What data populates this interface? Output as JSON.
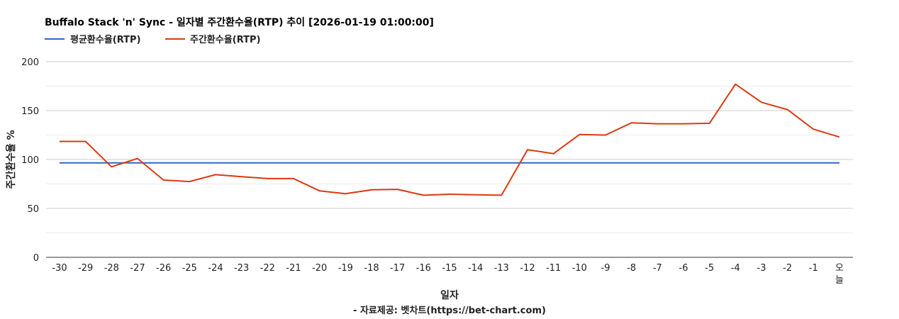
{
  "chart_data": {
    "type": "line",
    "title": "Buffalo Stack 'n' Sync - 일자별 주간환수율(RTP) 추이 [2026-01-19 01:00:00]",
    "xlabel": "일자",
    "ylabel": "주간환수율 %",
    "source": "- 자료제공: 벳차트(https://bet-chart.com)",
    "categories": [
      "-30",
      "-29",
      "-28",
      "-27",
      "-26",
      "-25",
      "-24",
      "-23",
      "-22",
      "-21",
      "-20",
      "-19",
      "-18",
      "-17",
      "-16",
      "-15",
      "-14",
      "-13",
      "-12",
      "-11",
      "-10",
      "-9",
      "-8",
      "-7",
      "-6",
      "-5",
      "-4",
      "-3",
      "-2",
      "-1",
      "오늘"
    ],
    "series": [
      {
        "name": "평균환수율(RTP)",
        "color": "#3366cc",
        "values": [
          96.5,
          96.5,
          96.5,
          96.5,
          96.5,
          96.5,
          96.5,
          96.5,
          96.5,
          96.5,
          96.5,
          96.5,
          96.5,
          96.5,
          96.5,
          96.5,
          96.5,
          96.5,
          96.5,
          96.5,
          96.5,
          96.5,
          96.5,
          96.5,
          96.5,
          96.5,
          96.5,
          96.5,
          96.5,
          96.5,
          96.5
        ]
      },
      {
        "name": "주간환수율(RTP)",
        "color": "#dc3912",
        "values": [
          118.5,
          118.5,
          92.5,
          101,
          79,
          77.5,
          84.5,
          82.5,
          80.5,
          80.5,
          68,
          65,
          69,
          69.5,
          63.5,
          64.5,
          64,
          63.5,
          110,
          106,
          125.5,
          125,
          137.5,
          136.5,
          136.5,
          137,
          177,
          158.5,
          151,
          131,
          123
        ]
      }
    ],
    "ylim": [
      0,
      200
    ],
    "yticks": [
      0,
      50,
      100,
      150,
      200
    ],
    "grid": true,
    "legend_position": "top-left"
  }
}
